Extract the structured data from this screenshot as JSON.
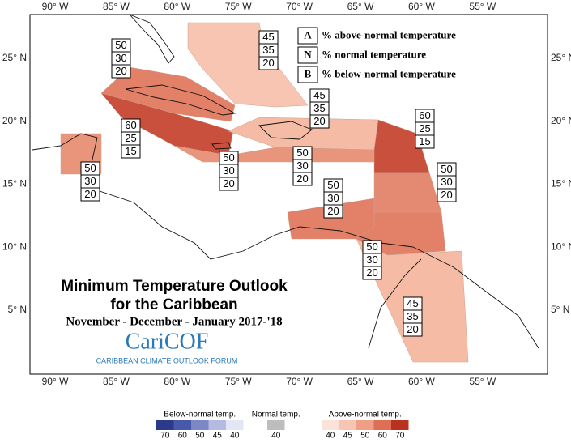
{
  "map": {
    "lon_labels": [
      "90° W",
      "85° W",
      "80° W",
      "75° W",
      "70° W",
      "65° W",
      "60° W",
      "55° W"
    ],
    "lat_labels": [
      "25° N",
      "20° N",
      "15° N",
      "10° N",
      "5° N"
    ],
    "key": [
      {
        "letter": "A",
        "text": "% above-normal temperature"
      },
      {
        "letter": "N",
        "text": "% normal temperature"
      },
      {
        "letter": "B",
        "text": "% below-normal temperature"
      }
    ],
    "regions": [
      {
        "values": [
          "45",
          "35",
          "20"
        ],
        "color": "#f8c5b3"
      },
      {
        "values": [
          "50",
          "30",
          "20"
        ],
        "color": "#e28068"
      },
      {
        "values": [
          "60",
          "25",
          "15"
        ],
        "color": "#c9503d"
      },
      {
        "values": [
          "50",
          "30",
          "20"
        ],
        "color": "#e8957c"
      },
      {
        "values": [
          "45",
          "35",
          "20"
        ],
        "color": "#f6bba5"
      },
      {
        "values": [
          "50",
          "30",
          "20"
        ],
        "color": "#e8957c"
      },
      {
        "values": [
          "50",
          "30",
          "20"
        ],
        "color": "#e8957c"
      },
      {
        "values": [
          "60",
          "25",
          "15"
        ],
        "color": "#c9503d"
      },
      {
        "values": [
          "50",
          "30",
          "20"
        ],
        "color": "#e58a72"
      },
      {
        "values": [
          "50",
          "30",
          "20"
        ],
        "color": "#e28068"
      },
      {
        "values": [
          "50",
          "30",
          "20"
        ],
        "color": "#e28068"
      },
      {
        "values": [
          "45",
          "35",
          "20"
        ],
        "color": "#f6bba5"
      }
    ],
    "title": [
      "Minimum Temperature Outlook",
      "for the Caribbean"
    ],
    "period": "November - December - January 2017-'18",
    "logo": "CariCOF",
    "logo_subtitle": "CARIBBEAN CLIMATE OUTLOOK FORUM",
    "legend": [
      {
        "title": "Below-normal temp.",
        "swatches": [
          {
            "label": "70",
            "color": "#2b3a8a"
          },
          {
            "label": "60",
            "color": "#4858aa"
          },
          {
            "label": "50",
            "color": "#7c88c6"
          },
          {
            "label": "45",
            "color": "#b4bae0"
          },
          {
            "label": "40",
            "color": "#e3e6f4"
          }
        ]
      },
      {
        "title": "Normal temp.",
        "swatches": [
          {
            "label": "40",
            "color": "#bdbdbd"
          }
        ]
      },
      {
        "title": "Above-normal temp.",
        "swatches": [
          {
            "label": "40",
            "color": "#fbe3d9"
          },
          {
            "label": "45",
            "color": "#f8c5b3"
          },
          {
            "label": "50",
            "color": "#ee9f86"
          },
          {
            "label": "60",
            "color": "#de6f55"
          },
          {
            "label": "70",
            "color": "#b8321f"
          }
        ]
      }
    ]
  }
}
